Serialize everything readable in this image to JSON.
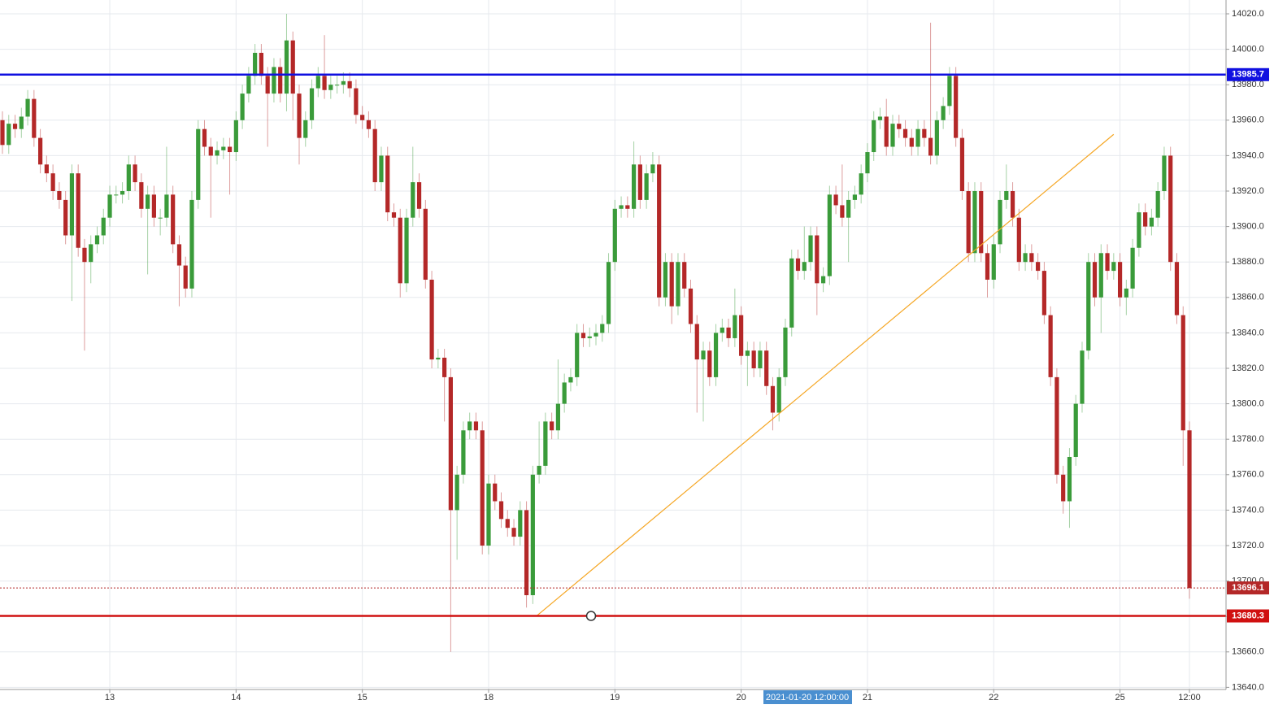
{
  "chart_data": {
    "type": "candlestick",
    "categories": [
      null,
      null,
      null,
      null,
      null,
      null,
      null,
      null,
      null,
      null,
      null,
      null,
      null,
      null,
      null,
      null,
      null,
      "13",
      null,
      null,
      null,
      null,
      null,
      null,
      null,
      null,
      null,
      null,
      null,
      null,
      null,
      null,
      null,
      null,
      null,
      null,
      null,
      "14",
      null,
      null,
      null,
      null,
      null,
      null,
      null,
      null,
      null,
      null,
      null,
      null,
      null,
      null,
      null,
      null,
      null,
      null,
      null,
      "15",
      null,
      null,
      null,
      null,
      null,
      null,
      null,
      null,
      null,
      null,
      null,
      null,
      null,
      null,
      null,
      null,
      null,
      null,
      null,
      "18",
      null,
      null,
      null,
      null,
      null,
      null,
      null,
      null,
      null,
      null,
      null,
      null,
      null,
      null,
      null,
      null,
      null,
      null,
      null,
      "19",
      null,
      null,
      null,
      null,
      null,
      null,
      null,
      null,
      null,
      null,
      null,
      null,
      null,
      null,
      null,
      null,
      null,
      null,
      null,
      "20",
      null,
      null,
      null,
      null,
      null,
      null,
      null,
      null,
      null,
      null,
      null,
      null,
      null,
      null,
      null,
      null,
      null,
      null,
      null,
      "21",
      null,
      null,
      null,
      null,
      null,
      null,
      null,
      null,
      null,
      null,
      null,
      null,
      null,
      null,
      null,
      null,
      null,
      null,
      null,
      "22",
      null,
      null,
      null,
      null,
      null,
      null,
      null,
      null,
      null,
      null,
      null,
      null,
      null,
      null,
      null,
      null,
      null,
      null,
      null,
      "25",
      null,
      null,
      null,
      null,
      null,
      null,
      null,
      null,
      null,
      null,
      "12:00"
    ],
    "open": [
      13960,
      13946,
      13958,
      13955,
      13962,
      13972,
      13950,
      13935,
      13930,
      13920,
      13915,
      13895,
      13930,
      13888,
      13880,
      13890,
      13895,
      13905,
      13918,
      13918,
      13920,
      13935,
      13925,
      13910,
      13918,
      13905,
      13905,
      13918,
      13890,
      13878,
      13865,
      13915,
      13955,
      13945,
      13940,
      13943,
      13945,
      13942,
      13960,
      13975,
      13985,
      13998,
      13985,
      13975,
      13990,
      13975,
      14005,
      13975,
      13950,
      13960,
      13978,
      13985,
      13977,
      13980,
      13980,
      13982,
      13978,
      13963,
      13960,
      13955,
      13925,
      13940,
      13908,
      13905,
      13868,
      13905,
      13925,
      13910,
      13870,
      13825,
      13826,
      13815,
      13740,
      13760,
      13785,
      13790,
      13785,
      13720,
      13755,
      13745,
      13735,
      13730,
      13725,
      13740,
      13692,
      13760,
      13765,
      13790,
      13785,
      13800,
      13812,
      13815,
      13840,
      13837,
      13838,
      13840,
      13845,
      13880,
      13910,
      13912,
      13910,
      13935,
      13915,
      13930,
      13935,
      13860,
      13880,
      13855,
      13880,
      13865,
      13845,
      13825,
      13830,
      13815,
      13840,
      13843,
      13837,
      13850,
      13827,
      13830,
      13820,
      13830,
      13810,
      13795,
      13815,
      13843,
      13882,
      13875,
      13880,
      13895,
      13868,
      13872,
      13918,
      13912,
      13905,
      13915,
      13918,
      13930,
      13942,
      13960,
      13962,
      13945,
      13958,
      13955,
      13950,
      13945,
      13955,
      13950,
      13940,
      13960,
      13968,
      13985,
      13950,
      13920,
      13885,
      13920,
      13885,
      13870,
      13890,
      13915,
      13920,
      13905,
      13880,
      13885,
      13880,
      13875,
      13850,
      13815,
      13760,
      13745,
      13770,
      13800,
      13830,
      13880,
      13860,
      13885,
      13875,
      13880,
      13860,
      13865,
      13888,
      13908,
      13900,
      13905,
      13920,
      13940,
      13880,
      13850,
      13785
    ],
    "high": [
      13965,
      13963,
      13963,
      13967,
      13977,
      13977,
      13955,
      13940,
      13935,
      13925,
      13920,
      13935,
      13935,
      13893,
      13895,
      13900,
      13910,
      13923,
      13923,
      13925,
      13940,
      13940,
      13930,
      13923,
      13923,
      13910,
      13945,
      13923,
      13895,
      13883,
      13920,
      13960,
      13960,
      13950,
      13948,
      13950,
      13950,
      13965,
      13980,
      13990,
      14003,
      14003,
      13990,
      13995,
      13995,
      14020,
      14010,
      13980,
      13965,
      13983,
      13990,
      14008,
      13985,
      13985,
      13987,
      13987,
      13983,
      13968,
      13965,
      13960,
      13945,
      13945,
      13913,
      13910,
      13910,
      13945,
      13930,
      13915,
      13875,
      13831,
      13831,
      13820,
      13765,
      13790,
      13795,
      13795,
      13790,
      13760,
      13760,
      13750,
      13740,
      13735,
      13745,
      13745,
      13765,
      13790,
      13795,
      13795,
      13825,
      13817,
      13820,
      13845,
      13845,
      13843,
      13845,
      13850,
      13885,
      13915,
      13917,
      13917,
      13948,
      13940,
      13935,
      13942,
      13940,
      13885,
      13885,
      13885,
      13885,
      13870,
      13850,
      13835,
      13835,
      13845,
      13848,
      13848,
      13865,
      13855,
      13835,
      13835,
      13835,
      13835,
      13815,
      13820,
      13848,
      13887,
      13887,
      13900,
      13900,
      13900,
      13877,
      13923,
      13923,
      13935,
      13920,
      13923,
      13935,
      13947,
      13965,
      13967,
      13972,
      13963,
      13963,
      13960,
      13955,
      13960,
      13960,
      14015,
      13965,
      13973,
      13990,
      13990,
      13955,
      13925,
      13925,
      13925,
      13890,
      13895,
      13920,
      13935,
      13925,
      13910,
      13890,
      13890,
      13885,
      13880,
      13855,
      13820,
      13765,
      13775,
      13805,
      13835,
      13885,
      13885,
      13890,
      13890,
      13885,
      13885,
      13870,
      13893,
      13913,
      13913,
      13910,
      13925,
      13945,
      13945,
      13885,
      13855,
      13790
    ],
    "low": [
      13941,
      13941,
      13950,
      13950,
      13957,
      13945,
      13930,
      13925,
      13915,
      13910,
      13890,
      13858,
      13883,
      13830,
      13868,
      13885,
      13890,
      13900,
      13913,
      13913,
      13915,
      13920,
      13905,
      13873,
      13900,
      13895,
      13900,
      13885,
      13855,
      13860,
      13860,
      13910,
      13940,
      13905,
      13935,
      13938,
      13918,
      13937,
      13955,
      13970,
      13980,
      13980,
      13945,
      13970,
      13970,
      13965,
      13960,
      13935,
      13945,
      13955,
      13973,
      13972,
      13972,
      13975,
      13975,
      13973,
      13958,
      13955,
      13950,
      13920,
      13920,
      13903,
      13900,
      13860,
      13863,
      13900,
      13905,
      13865,
      13820,
      13820,
      13790,
      13660,
      13712,
      13755,
      13780,
      13780,
      13715,
      13715,
      13740,
      13730,
      13725,
      13720,
      13720,
      13685,
      13687,
      13755,
      13760,
      13780,
      13780,
      13795,
      13807,
      13810,
      13832,
      13832,
      13833,
      13835,
      13840,
      13875,
      13905,
      13905,
      13905,
      13910,
      13910,
      13925,
      13855,
      13855,
      13845,
      13850,
      13860,
      13840,
      13795,
      13790,
      13810,
      13810,
      13835,
      13832,
      13832,
      13822,
      13810,
      13815,
      13815,
      13805,
      13785,
      13790,
      13810,
      13838,
      13870,
      13870,
      13875,
      13850,
      13863,
      13867,
      13907,
      13900,
      13880,
      13910,
      13913,
      13925,
      13937,
      13955,
      13940,
      13940,
      13950,
      13945,
      13940,
      13940,
      13945,
      13935,
      13935,
      13955,
      13963,
      13945,
      13915,
      13880,
      13880,
      13880,
      13860,
      13865,
      13885,
      13910,
      13900,
      13875,
      13875,
      13875,
      13870,
      13845,
      13810,
      13755,
      13738,
      13730,
      13765,
      13795,
      13825,
      13855,
      13840,
      13870,
      13870,
      13855,
      13850,
      13860,
      13883,
      13895,
      13895,
      13900,
      13915,
      13875,
      13845,
      13765,
      13690
    ],
    "close": [
      13946,
      13958,
      13955,
      13962,
      13972,
      13950,
      13935,
      13930,
      13920,
      13915,
      13895,
      13930,
      13888,
      13880,
      13890,
      13895,
      13905,
      13918,
      13918,
      13920,
      13935,
      13925,
      13910,
      13918,
      13905,
      13905,
      13918,
      13890,
      13878,
      13865,
      13915,
      13955,
      13945,
      13940,
      13943,
      13945,
      13942,
      13960,
      13975,
      13985,
      13998,
      13985,
      13975,
      13990,
      13975,
      14005,
      13975,
      13950,
      13960,
      13978,
      13985,
      13977,
      13980,
      13980,
      13982,
      13978,
      13963,
      13960,
      13955,
      13925,
      13940,
      13908,
      13905,
      13868,
      13905,
      13925,
      13910,
      13870,
      13825,
      13826,
      13815,
      13740,
      13760,
      13785,
      13790,
      13785,
      13720,
      13755,
      13745,
      13735,
      13730,
      13725,
      13740,
      13692,
      13760,
      13765,
      13790,
      13785,
      13800,
      13812,
      13815,
      13840,
      13837,
      13838,
      13840,
      13845,
      13880,
      13910,
      13912,
      13910,
      13935,
      13915,
      13930,
      13935,
      13860,
      13880,
      13855,
      13880,
      13865,
      13845,
      13825,
      13830,
      13815,
      13840,
      13843,
      13837,
      13850,
      13827,
      13830,
      13820,
      13830,
      13810,
      13795,
      13815,
      13843,
      13882,
      13875,
      13880,
      13895,
      13868,
      13872,
      13918,
      13912,
      13905,
      13915,
      13918,
      13930,
      13942,
      13960,
      13962,
      13945,
      13958,
      13955,
      13950,
      13945,
      13955,
      13950,
      13940,
      13960,
      13968,
      13985,
      13950,
      13920,
      13885,
      13920,
      13885,
      13870,
      13890,
      13915,
      13920,
      13905,
      13880,
      13885,
      13880,
      13875,
      13850,
      13815,
      13760,
      13745,
      13770,
      13800,
      13830,
      13880,
      13860,
      13885,
      13875,
      13880,
      13860,
      13865,
      13888,
      13908,
      13900,
      13905,
      13920,
      13940,
      13880,
      13850,
      13785,
      13696.1
    ],
    "up_color": "#3a9b3a",
    "down_color": "#b42828",
    "ylim": [
      13638.8,
      14027.8
    ],
    "yticks": [
      {
        "value": 13640,
        "label": "13640.0"
      },
      {
        "value": 13660,
        "label": "13660.0"
      },
      {
        "value": 13680,
        "label": "13680.0"
      },
      {
        "value": 13700,
        "label": "13700.0"
      },
      {
        "value": 13720,
        "label": "13720.0"
      },
      {
        "value": 13740,
        "label": "13740.0"
      },
      {
        "value": 13760,
        "label": "13760.0"
      },
      {
        "value": 13780,
        "label": "13780.0"
      },
      {
        "value": 13800,
        "label": "13800.0"
      },
      {
        "value": 13820,
        "label": "13820.0"
      },
      {
        "value": 13840,
        "label": "13840.0"
      },
      {
        "value": 13860,
        "label": "13860.0"
      },
      {
        "value": 13880,
        "label": "13880.0"
      },
      {
        "value": 13900,
        "label": "13900.0"
      },
      {
        "value": 13920,
        "label": "13920.0"
      },
      {
        "value": 13940,
        "label": "13940.0"
      },
      {
        "value": 13960,
        "label": "13960.0"
      },
      {
        "value": 13980,
        "label": "13980.0"
      },
      {
        "value": 14000,
        "label": "14000.0"
      },
      {
        "value": 14020,
        "label": "14020.0"
      }
    ],
    "grid": true,
    "levels": [
      {
        "value": 13985.7,
        "color": "#1010e0",
        "dashed": false
      },
      {
        "value": 13696.1,
        "color": "#b42828",
        "dashed": true
      },
      {
        "value": 13680.3,
        "color": "#d01010",
        "dashed": false
      }
    ],
    "trendline": {
      "x": [
        84.6,
        176
      ],
      "y": [
        13680.3,
        13952
      ],
      "color": "#f5a623"
    },
    "crosshair_label": "2021-01-20 12:00:00"
  }
}
